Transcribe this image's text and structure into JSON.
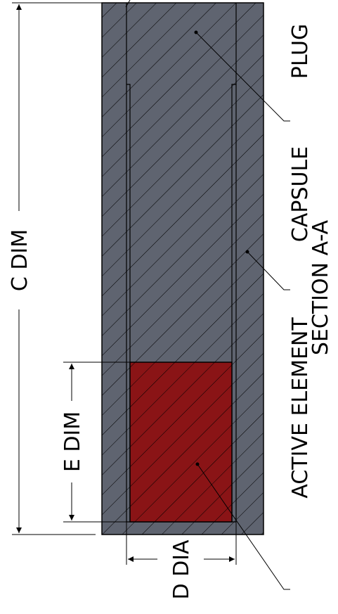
{
  "labels": {
    "plug": "PLUG",
    "capsule": "CAPSULE",
    "section": "SECTION A-A",
    "active_element": "ACTIVE ELEMENT",
    "c_dim": "C DIM",
    "e_dim": "E DIM",
    "d_dia": "D DIA"
  },
  "colors": {
    "capsule_fill": "#5f6470",
    "active_fill": "#8a1416",
    "line": "#000000",
    "background": "#ffffff"
  }
}
